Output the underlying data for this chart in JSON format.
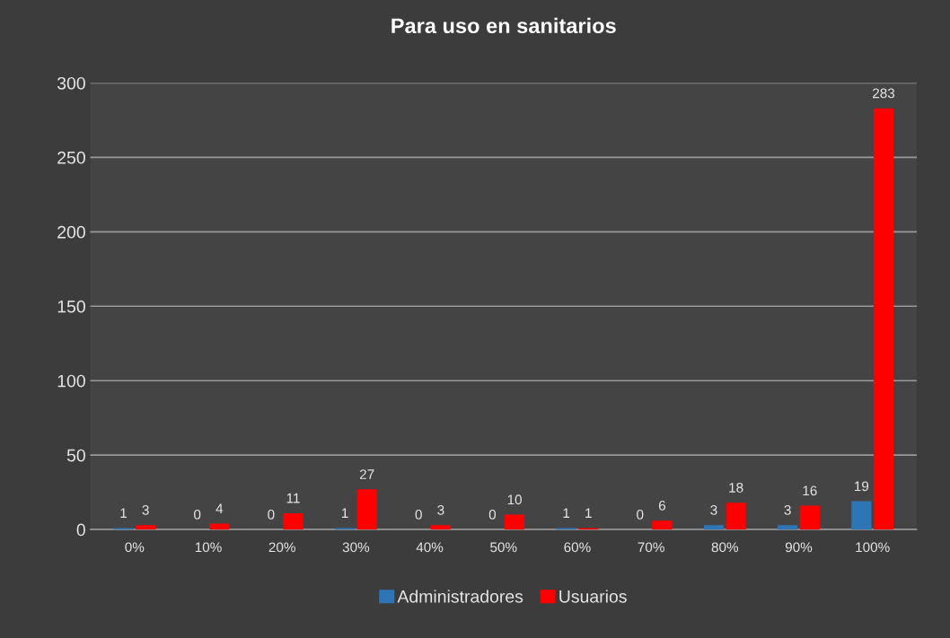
{
  "chart_data": {
    "type": "bar",
    "title": "Para uso en sanitarios",
    "categories": [
      "0%",
      "10%",
      "20%",
      "30%",
      "40%",
      "50%",
      "60%",
      "70%",
      "80%",
      "90%",
      "100%"
    ],
    "series": [
      {
        "name": "Administradores",
        "color": "#2e75b6",
        "values": [
          1,
          0,
          0,
          1,
          0,
          0,
          1,
          0,
          3,
          3,
          19
        ]
      },
      {
        "name": "Usuarios",
        "color": "#ff0000",
        "values": [
          3,
          4,
          11,
          27,
          3,
          10,
          1,
          6,
          18,
          16,
          283
        ]
      }
    ],
    "ylim": [
      0,
      300
    ],
    "yticks": [
      0,
      50,
      100,
      150,
      200,
      250,
      300
    ],
    "grid": "y",
    "legend": "bottom",
    "data_labels": true
  }
}
